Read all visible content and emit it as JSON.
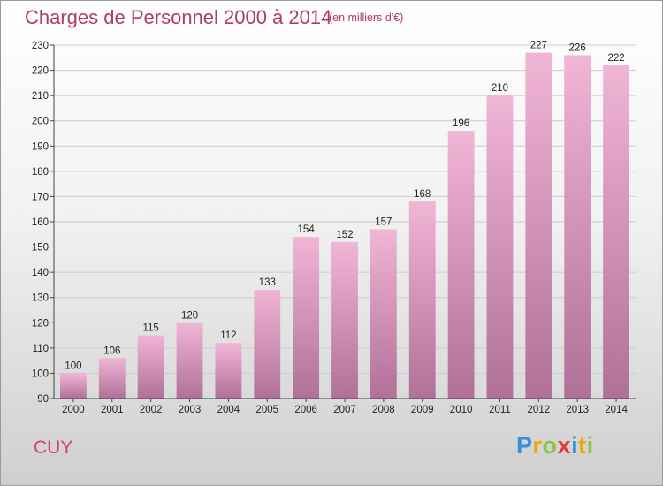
{
  "header": {
    "title": "Charges de Personnel 2000 à 2014",
    "subtitle": "(en milliers d'€)"
  },
  "footer": {
    "commune": "CUY",
    "logo": {
      "letters": [
        "P",
        "r",
        "o",
        "x",
        "i",
        "t",
        "i"
      ],
      "colors": [
        "#3a8fd6",
        "#f2a400",
        "#8dc63f",
        "#e53935",
        "#3a8fd6",
        "#f2a400",
        "#8dc63f"
      ]
    }
  },
  "colors": {
    "bar_light": "#f1b5d6",
    "bar_dark": "#b07098",
    "grid": "#cccccc",
    "title": "#b03a6a"
  },
  "chart_data": {
    "type": "bar",
    "title": "Charges de Personnel 2000 à 2014",
    "subtitle": "(en milliers d'€)",
    "categories": [
      "2000",
      "2001",
      "2002",
      "2003",
      "2004",
      "2005",
      "2006",
      "2007",
      "2008",
      "2009",
      "2010",
      "2011",
      "2012",
      "2013",
      "2014"
    ],
    "values": [
      100,
      106,
      115,
      120,
      112,
      133,
      154,
      152,
      157,
      168,
      196,
      210,
      227,
      226,
      222
    ],
    "ylim": [
      90,
      230
    ],
    "yticks": [
      90,
      100,
      110,
      120,
      130,
      140,
      150,
      160,
      170,
      180,
      190,
      200,
      210,
      220,
      230
    ],
    "grid": true,
    "xlabel": "",
    "ylabel": ""
  }
}
